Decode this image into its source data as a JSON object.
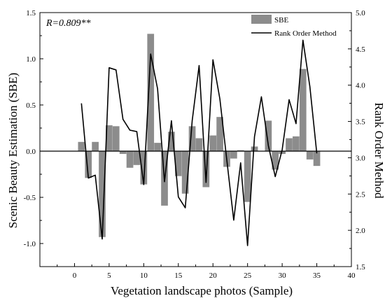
{
  "chart_data": {
    "type": "bar+line",
    "annotation": "R=0.809**",
    "xlabel": "Vegetation landscape photos (Sample)",
    "ylabel_left": "Scenic Beauty Estimation (SBE)",
    "ylabel_right": "Rank Order Method",
    "xlim": [
      -5,
      40
    ],
    "ylim_left": [
      -1.25,
      1.5
    ],
    "ylim_right": [
      1.5,
      5.0
    ],
    "x_ticks": [
      0,
      5,
      10,
      15,
      20,
      25,
      30,
      35,
      40
    ],
    "y_left_ticks": [
      "-1.0",
      "-0.5",
      "0.0",
      "0.5",
      "1.0",
      "1.5"
    ],
    "y_right_ticks": [
      "1.5",
      "2.0",
      "2.5",
      "3.0",
      "3.5",
      "4.0",
      "4.5",
      "5.0"
    ],
    "legend_position": "top-right",
    "colors": {
      "bars": "#8c8c8c",
      "line": "#000000"
    },
    "x": [
      1,
      2,
      3,
      4,
      5,
      6,
      7,
      8,
      9,
      10,
      11,
      12,
      13,
      14,
      15,
      16,
      17,
      18,
      19,
      20,
      21,
      22,
      23,
      24,
      25,
      26,
      27,
      28,
      29,
      30,
      31,
      32,
      33,
      34,
      35
    ],
    "series": [
      {
        "name": "SBE",
        "kind": "bar",
        "axis": "left",
        "values": [
          0.1,
          -0.29,
          0.1,
          -0.93,
          0.28,
          0.27,
          -0.03,
          -0.18,
          -0.15,
          -0.36,
          1.27,
          0.09,
          -0.59,
          0.21,
          -0.27,
          -0.46,
          0.27,
          0.14,
          -0.39,
          0.17,
          0.37,
          -0.17,
          -0.08,
          0.01,
          -0.55,
          0.05,
          0.0,
          0.33,
          -0.2,
          -0.03,
          0.14,
          0.16,
          0.89,
          -0.09,
          -0.16
        ]
      },
      {
        "name": "Rank Order Method",
        "kind": "line",
        "axis": "right",
        "values": [
          3.75,
          2.72,
          2.76,
          1.88,
          4.24,
          4.21,
          3.53,
          3.38,
          3.36,
          2.63,
          4.43,
          3.95,
          2.67,
          3.51,
          2.46,
          2.31,
          3.51,
          4.27,
          2.66,
          4.35,
          3.81,
          2.97,
          2.14,
          2.93,
          1.79,
          3.29,
          3.84,
          3.17,
          2.74,
          3.11,
          3.8,
          3.47,
          4.62,
          3.98,
          3.06
        ]
      }
    ]
  }
}
